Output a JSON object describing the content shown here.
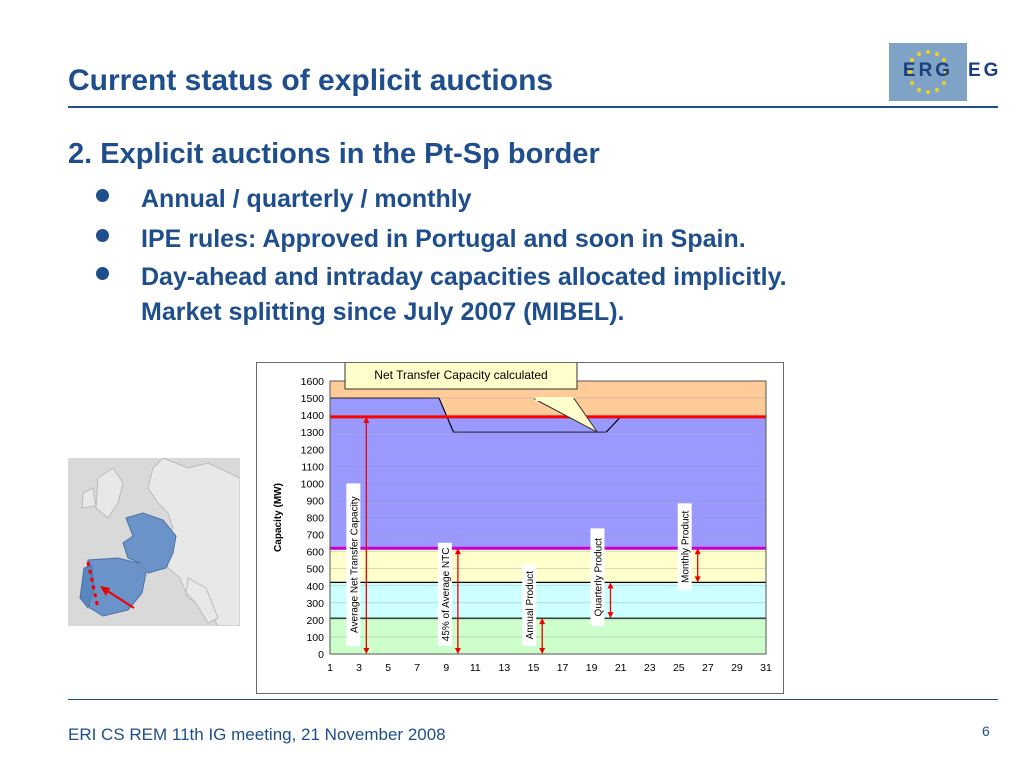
{
  "slide": {
    "title": "Current status of explicit auctions",
    "heading": "2. Explicit auctions in the Pt-Sp border",
    "bullets": [
      "Annual / quarterly / monthly",
      "IPE rules: Approved in Portugal and soon in Spain.",
      "Day-ahead and intraday capacities allocated implicitly.",
      "Market splitting since July 2007 (MIBEL)."
    ],
    "logo_text": "ERG",
    "logo_tail": "EG",
    "footer": "ERI CS REM 11th IG meeting, 21 November 2008",
    "page_number": "6"
  },
  "chart_data": {
    "type": "area",
    "ylabel": "Capacity (MW)",
    "ylim": [
      0,
      1600
    ],
    "yticks": [
      0,
      100,
      200,
      300,
      400,
      500,
      600,
      700,
      800,
      900,
      1000,
      1100,
      1200,
      1300,
      1400,
      1500,
      1600
    ],
    "xticks": [
      1,
      3,
      5,
      7,
      9,
      11,
      13,
      15,
      17,
      19,
      21,
      23,
      25,
      27,
      29,
      31
    ],
    "xlim": [
      1,
      31
    ],
    "callout": "Net Transfer Capacity calculated",
    "bands": [
      {
        "from": 0,
        "to": 210,
        "color": "#ccffcc"
      },
      {
        "from": 210,
        "to": 420,
        "color": "#ccffff"
      },
      {
        "from": 420,
        "to": 620,
        "color": "#ffffcc"
      },
      {
        "from": 620,
        "to": 1390,
        "color": "#9999ff"
      },
      {
        "from": 1390,
        "to": 1600,
        "color": "#ffcc99"
      }
    ],
    "ntc_profile": [
      [
        1,
        1500
      ],
      [
        8.5,
        1500
      ],
      [
        9.5,
        1300
      ],
      [
        20,
        1300
      ],
      [
        21,
        1390
      ],
      [
        31,
        1390
      ]
    ],
    "lines": [
      {
        "value": 1390,
        "color": "#ff0000"
      },
      {
        "value": 620,
        "color": "#cc00cc"
      },
      {
        "value": 420,
        "color": "#000000"
      },
      {
        "value": 210,
        "color": "#000000"
      }
    ],
    "annotations": [
      {
        "label": "Average Net Transfer Capacity",
        "x": 3.5,
        "from": 0,
        "to": 1390
      },
      {
        "label": "45% of Average NTC",
        "x": 9.8,
        "from": 0,
        "to": 620
      },
      {
        "label": "Annual Product",
        "x": 15.6,
        "from": 0,
        "to": 210
      },
      {
        "label": "Quarterly Product",
        "x": 20.3,
        "from": 210,
        "to": 420
      },
      {
        "label": "Monthly Product",
        "x": 26.3,
        "from": 420,
        "to": 620
      }
    ]
  }
}
